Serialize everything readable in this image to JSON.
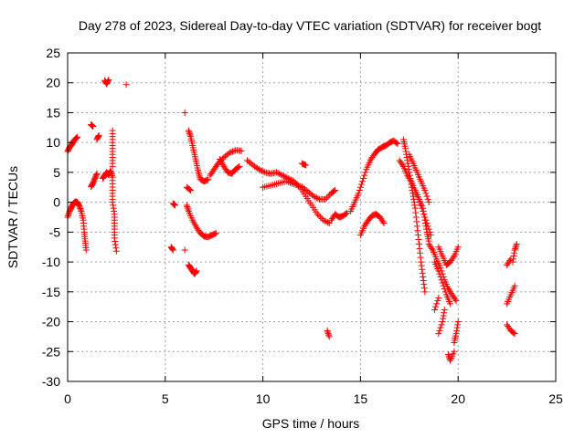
{
  "chart_data": {
    "type": "scatter",
    "title": "Day 278 of 2023, Sidereal Day-to-day VTEC variation (SDTVAR) for receiver bogt",
    "xlabel": "GPS time / hours",
    "ylabel": "SDTVAR / TECUs",
    "xlim": [
      0,
      25
    ],
    "ylim": [
      -30,
      25
    ],
    "xticks": [
      "0",
      "5",
      "10",
      "15",
      "20",
      "25"
    ],
    "yticks": [
      "-30",
      "-25",
      "-20",
      "-15",
      "-10",
      "-5",
      "0",
      "5",
      "10",
      "15",
      "20",
      "25"
    ],
    "grid": true,
    "marker": "+",
    "color": "#ff0000",
    "segments": [
      [
        [
          0.0,
          8.5
        ],
        [
          0.1,
          9.2
        ],
        [
          0.2,
          9.6
        ],
        [
          0.3,
          10.2
        ],
        [
          0.4,
          10.6
        ],
        [
          0.5,
          10.9
        ]
      ],
      [
        [
          0.0,
          -2.5
        ],
        [
          0.1,
          -1.5
        ],
        [
          0.2,
          -0.8
        ],
        [
          0.3,
          -0.2
        ],
        [
          0.4,
          0.1
        ],
        [
          0.5,
          0.0
        ],
        [
          0.6,
          -0.6
        ],
        [
          0.7,
          -1.5
        ],
        [
          0.8,
          -3.0
        ],
        [
          0.85,
          -5.0
        ],
        [
          0.9,
          -6.5
        ],
        [
          0.95,
          -8.0
        ]
      ],
      [
        [
          1.2,
          13.0
        ],
        [
          1.3,
          12.7
        ]
      ],
      [
        [
          1.5,
          10.5
        ],
        [
          1.6,
          11.2
        ]
      ],
      [
        [
          1.2,
          2.6
        ],
        [
          1.3,
          3.2
        ],
        [
          1.4,
          4.0
        ],
        [
          1.5,
          4.8
        ]
      ],
      [
        [
          1.9,
          20.4
        ],
        [
          2.0,
          19.8
        ],
        [
          2.1,
          20.5
        ]
      ],
      [
        [
          1.8,
          4.0
        ],
        [
          1.9,
          4.5
        ],
        [
          2.0,
          5.0
        ],
        [
          2.1,
          4.6
        ],
        [
          2.2,
          5.3
        ],
        [
          2.3,
          4.2
        ],
        [
          2.3,
          2.0
        ],
        [
          2.3,
          0.0
        ],
        [
          2.4,
          -2.0
        ],
        [
          2.4,
          -4.0
        ],
        [
          2.4,
          -6.0
        ],
        [
          2.5,
          -8.2
        ]
      ],
      [
        [
          2.3,
          12.0
        ],
        [
          2.3,
          10.0
        ],
        [
          2.3,
          8.0
        ],
        [
          2.3,
          6.0
        ]
      ],
      [
        [
          3.0,
          19.7
        ]
      ],
      [
        [
          5.3,
          -7.5
        ],
        [
          5.4,
          -8.0
        ]
      ],
      [
        [
          5.4,
          -0.2
        ],
        [
          5.5,
          -0.5
        ]
      ],
      [
        [
          6.0,
          15.0
        ]
      ],
      [
        [
          6.0,
          -8.0
        ]
      ],
      [
        [
          6.1,
          -0.5
        ],
        [
          6.2,
          -1.5
        ],
        [
          6.4,
          -3.0
        ],
        [
          6.6,
          -4.2
        ],
        [
          6.8,
          -5.2
        ],
        [
          7.0,
          -5.7
        ],
        [
          7.2,
          -5.8
        ],
        [
          7.4,
          -5.5
        ],
        [
          7.6,
          -5.2
        ]
      ],
      [
        [
          6.2,
          -10.5
        ],
        [
          6.3,
          -11.0
        ],
        [
          6.4,
          -11.5
        ],
        [
          6.5,
          -12.0
        ],
        [
          6.6,
          -11.5
        ]
      ],
      [
        [
          6.1,
          2.5
        ],
        [
          6.3,
          2.0
        ]
      ],
      [
        [
          6.2,
          12.0
        ],
        [
          6.3,
          11.0
        ],
        [
          6.4,
          9.5
        ],
        [
          6.5,
          8.0
        ],
        [
          6.6,
          6.5
        ],
        [
          6.7,
          5.0
        ],
        [
          6.8,
          3.8
        ],
        [
          7.0,
          3.5
        ],
        [
          7.2,
          3.8
        ]
      ],
      [
        [
          7.3,
          4.5
        ],
        [
          7.5,
          5.5
        ],
        [
          7.7,
          6.5
        ],
        [
          8.0,
          7.5
        ],
        [
          8.3,
          8.3
        ],
        [
          8.6,
          8.7
        ],
        [
          8.9,
          8.6
        ]
      ],
      [
        [
          7.8,
          7.2
        ],
        [
          8.0,
          6.0
        ],
        [
          8.2,
          5.0
        ],
        [
          8.4,
          4.8
        ],
        [
          8.6,
          5.5
        ],
        [
          8.8,
          6.0
        ]
      ],
      [
        [
          9.2,
          7.0
        ],
        [
          9.5,
          6.2
        ],
        [
          9.8,
          5.5
        ],
        [
          10.1,
          5.0
        ],
        [
          10.4,
          4.8
        ],
        [
          10.7,
          5.0
        ],
        [
          11.0,
          4.5
        ],
        [
          11.3,
          4.0
        ],
        [
          11.6,
          3.5
        ],
        [
          11.9,
          2.5
        ],
        [
          12.2,
          1.0
        ],
        [
          12.5,
          -0.5
        ],
        [
          12.8,
          -2.0
        ],
        [
          13.1,
          -3.0
        ],
        [
          13.4,
          -3.5
        ]
      ],
      [
        [
          10.0,
          2.5
        ],
        [
          10.4,
          2.8
        ],
        [
          10.8,
          3.2
        ],
        [
          11.2,
          3.5
        ],
        [
          11.6,
          3.0
        ],
        [
          12.0,
          2.6
        ],
        [
          12.3,
          1.8
        ],
        [
          12.6,
          1.0
        ],
        [
          12.9,
          0.5
        ],
        [
          13.2,
          0.5
        ],
        [
          13.5,
          1.5
        ],
        [
          13.7,
          2.0
        ]
      ],
      [
        [
          12.0,
          6.5
        ],
        [
          12.2,
          6.2
        ]
      ],
      [
        [
          13.3,
          -21.5
        ],
        [
          13.4,
          -22.5
        ]
      ],
      [
        [
          13.5,
          -3.0
        ],
        [
          13.7,
          -2.0
        ],
        [
          13.9,
          -2.5
        ],
        [
          14.1,
          -2.3
        ],
        [
          14.3,
          -1.8
        ]
      ],
      [
        [
          14.5,
          -1.5
        ],
        [
          14.7,
          0.0
        ],
        [
          14.9,
          1.5
        ],
        [
          15.1,
          3.5
        ],
        [
          15.3,
          5.5
        ],
        [
          15.5,
          7.0
        ],
        [
          15.7,
          8.0
        ],
        [
          15.9,
          8.8
        ],
        [
          16.1,
          9.2
        ],
        [
          16.3,
          9.5
        ],
        [
          16.5,
          10.0
        ],
        [
          16.7,
          10.3
        ],
        [
          16.9,
          9.8
        ]
      ],
      [
        [
          15.0,
          -5.5
        ],
        [
          15.2,
          -4.0
        ],
        [
          15.4,
          -3.0
        ],
        [
          15.6,
          -2.2
        ],
        [
          15.8,
          -2.0
        ],
        [
          16.0,
          -2.5
        ],
        [
          16.2,
          -3.5
        ]
      ],
      [
        [
          17.2,
          10.5
        ],
        [
          17.3,
          9.0
        ],
        [
          17.4,
          7.0
        ],
        [
          17.5,
          5.0
        ],
        [
          17.6,
          3.0
        ],
        [
          17.7,
          1.0
        ],
        [
          17.8,
          -1.0
        ],
        [
          17.9,
          -4.0
        ],
        [
          18.0,
          -7.0
        ],
        [
          18.1,
          -10.0
        ],
        [
          18.2,
          -12.5
        ],
        [
          18.3,
          -15.0
        ]
      ],
      [
        [
          17.0,
          7.0
        ],
        [
          17.2,
          6.0
        ],
        [
          17.4,
          4.5
        ],
        [
          17.6,
          3.5
        ],
        [
          17.8,
          2.0
        ],
        [
          18.0,
          0.5
        ],
        [
          18.2,
          -1.5
        ],
        [
          18.4,
          -3.5
        ],
        [
          18.6,
          -5.5
        ]
      ],
      [
        [
          17.5,
          8.0
        ],
        [
          17.7,
          6.5
        ],
        [
          17.9,
          5.0
        ],
        [
          18.1,
          3.5
        ],
        [
          18.3,
          2.0
        ],
        [
          18.5,
          0.0
        ]
      ],
      [
        [
          17.8,
          2.0
        ],
        [
          18.0,
          0.5
        ],
        [
          18.2,
          -1.0
        ],
        [
          18.3,
          -3.0
        ],
        [
          18.4,
          -5.0
        ],
        [
          18.5,
          -6.5
        ]
      ],
      [
        [
          18.5,
          -7.0
        ],
        [
          18.7,
          -8.0
        ],
        [
          18.9,
          -9.5
        ],
        [
          19.1,
          -11.0
        ],
        [
          19.3,
          -13.0
        ],
        [
          19.5,
          -14.5
        ],
        [
          19.7,
          -15.5
        ],
        [
          19.9,
          -16.5
        ]
      ],
      [
        [
          18.8,
          -10.0
        ],
        [
          19.0,
          -11.5
        ],
        [
          19.2,
          -13.5
        ],
        [
          19.4,
          -15.5
        ],
        [
          19.6,
          -17.0
        ]
      ],
      [
        [
          19.0,
          -7.5
        ],
        [
          19.2,
          -9.0
        ],
        [
          19.4,
          -10.5
        ],
        [
          19.6,
          -10.0
        ],
        [
          19.8,
          -9.0
        ],
        [
          20.0,
          -7.5
        ]
      ],
      [
        [
          19.0,
          -22.0
        ],
        [
          19.2,
          -20.0
        ],
        [
          19.3,
          -18.0
        ]
      ],
      [
        [
          19.5,
          -25.5
        ],
        [
          19.6,
          -26.5
        ],
        [
          19.8,
          -25.0
        ]
      ],
      [
        [
          19.8,
          -23.5
        ],
        [
          19.9,
          -22.0
        ],
        [
          20.0,
          -20.0
        ]
      ],
      [
        [
          18.8,
          -18.0
        ],
        [
          19.0,
          -16.0
        ]
      ],
      [
        [
          22.5,
          -10.5
        ],
        [
          22.7,
          -9.5
        ]
      ],
      [
        [
          22.5,
          -17.0
        ],
        [
          22.7,
          -15.5
        ],
        [
          22.9,
          -14.0
        ]
      ],
      [
        [
          22.5,
          -20.5
        ],
        [
          22.7,
          -21.5
        ],
        [
          22.9,
          -22.0
        ]
      ],
      [
        [
          22.8,
          -10.0
        ],
        [
          22.9,
          -8.0
        ],
        [
          23.0,
          -7.0
        ]
      ]
    ]
  }
}
